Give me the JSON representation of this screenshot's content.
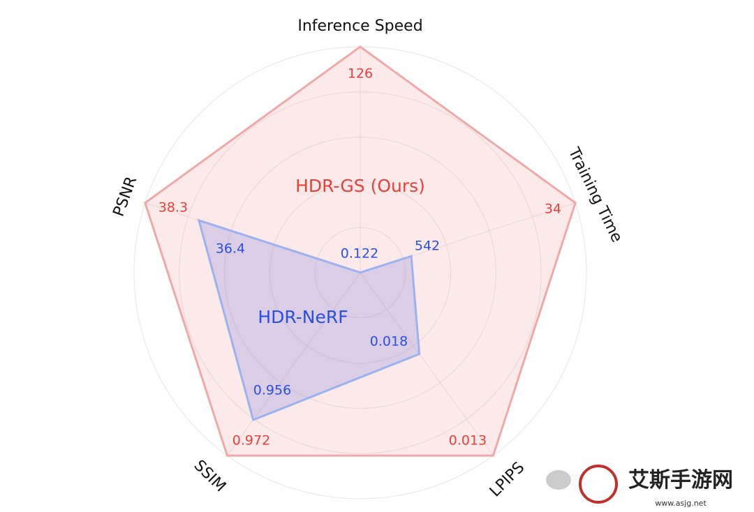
{
  "chart_data": {
    "type": "radar",
    "axes": [
      {
        "name": "Inference Speed",
        "lim": [
          0,
          126
        ]
      },
      {
        "name": "Training Time",
        "lim": [
          700,
          34
        ]
      },
      {
        "name": "LPIPS",
        "lim": [
          0.022,
          0.013
        ]
      },
      {
        "name": "SSIM",
        "lim": [
          0.89,
          0.972
        ]
      },
      {
        "name": "PSNR",
        "lim": [
          30.7,
          38.3
        ]
      }
    ],
    "series": [
      {
        "name": "HDR-GS (Ours)",
        "color": "#e8403a",
        "values": [
          126,
          34,
          0.013,
          0.972,
          38.3
        ]
      },
      {
        "name": "HDR-NeRF",
        "color": "#2a4fe6",
        "values": [
          0.122,
          542,
          0.018,
          0.956,
          36.4
        ]
      }
    ],
    "grid": true
  },
  "watermark": {
    "text": "艾斯手游网",
    "url": "www.asjg.net"
  }
}
